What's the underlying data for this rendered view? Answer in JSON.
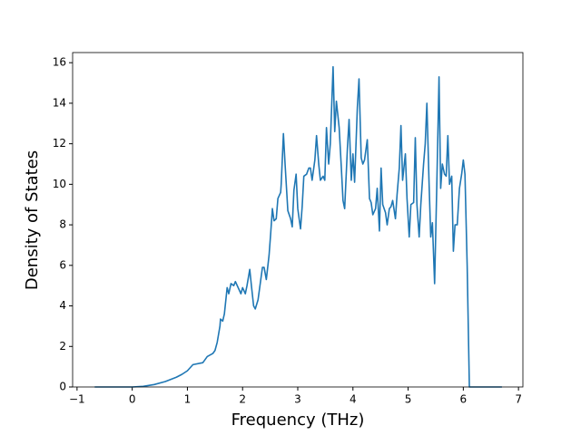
{
  "chart_data": {
    "type": "line",
    "xlabel": "Frequency (THz)",
    "ylabel": "Density of States",
    "x": [
      -0.68,
      0,
      0.2,
      0.4,
      0.6,
      0.8,
      0.9,
      1.0,
      1.1,
      1.28,
      1.36,
      1.46,
      1.5,
      1.54,
      1.59,
      1.6,
      1.64,
      1.67,
      1.72,
      1.75,
      1.79,
      1.84,
      1.87,
      1.92,
      1.97,
      2.0,
      2.05,
      2.08,
      2.13,
      2.16,
      2.2,
      2.23,
      2.28,
      2.33,
      2.36,
      2.39,
      2.43,
      2.48,
      2.51,
      2.54,
      2.57,
      2.61,
      2.64,
      2.69,
      2.7,
      2.74,
      2.77,
      2.82,
      2.87,
      2.9,
      2.93,
      2.97,
      3.0,
      3.05,
      3.08,
      3.11,
      3.16,
      3.2,
      3.23,
      3.26,
      3.31,
      3.34,
      3.38,
      3.41,
      3.46,
      3.49,
      3.52,
      3.56,
      3.59,
      3.64,
      3.67,
      3.7,
      3.75,
      3.79,
      3.82,
      3.85,
      3.9,
      3.93,
      3.97,
      4.0,
      4.03,
      4.08,
      4.11,
      4.15,
      4.18,
      4.21,
      4.26,
      4.3,
      4.33,
      4.36,
      4.41,
      4.44,
      4.48,
      4.51,
      4.54,
      4.59,
      4.62,
      4.66,
      4.69,
      4.72,
      4.77,
      4.8,
      4.84,
      4.87,
      4.9,
      4.95,
      4.98,
      5.02,
      5.05,
      5.1,
      5.13,
      5.16,
      5.2,
      5.23,
      5.28,
      5.31,
      5.34,
      5.38,
      5.41,
      5.44,
      5.48,
      5.52,
      5.56,
      5.59,
      5.62,
      5.66,
      5.69,
      5.72,
      5.75,
      5.79,
      5.82,
      5.85,
      5.89,
      5.93,
      5.97,
      6.0,
      6.03,
      6.07,
      6.11,
      6.7
    ],
    "series": [
      {
        "color": "#1f77b4",
        "values": [
          0,
          0,
          0.03,
          0.12,
          0.27,
          0.48,
          0.62,
          0.8,
          1.1,
          1.2,
          1.5,
          1.65,
          1.8,
          2.2,
          3.0,
          3.35,
          3.25,
          3.6,
          4.9,
          4.6,
          5.1,
          5.0,
          5.2,
          4.9,
          4.6,
          4.9,
          4.6,
          5.0,
          5.8,
          5.0,
          4.0,
          3.85,
          4.3,
          5.3,
          5.9,
          5.9,
          5.3,
          6.5,
          7.6,
          8.8,
          8.2,
          8.3,
          9.3,
          9.6,
          10.0,
          12.5,
          11.0,
          8.7,
          8.3,
          7.9,
          9.7,
          10.5,
          8.8,
          7.8,
          8.9,
          10.4,
          10.5,
          10.8,
          10.8,
          10.2,
          11.2,
          12.4,
          11.0,
          10.2,
          10.4,
          10.2,
          12.8,
          11.0,
          12.0,
          15.8,
          12.6,
          14.1,
          12.8,
          10.8,
          9.2,
          8.8,
          11.8,
          13.2,
          10.2,
          11.5,
          10.1,
          13.8,
          15.2,
          11.3,
          11.0,
          11.2,
          12.2,
          9.3,
          9.1,
          8.5,
          8.8,
          9.8,
          7.7,
          10.8,
          9.0,
          8.6,
          8.0,
          8.8,
          8.9,
          9.2,
          8.3,
          9.5,
          10.8,
          12.9,
          10.2,
          11.5,
          9.3,
          7.4,
          9.0,
          9.1,
          12.3,
          9.0,
          7.4,
          9.0,
          11.0,
          12.0,
          14.0,
          10.0,
          7.4,
          8.1,
          5.1,
          10.0,
          15.3,
          9.8,
          11.0,
          10.5,
          10.4,
          12.4,
          10.0,
          10.4,
          6.7,
          8.0,
          8.0,
          9.8,
          10.5,
          11.2,
          10.5,
          6.0,
          0,
          0
        ]
      }
    ],
    "xlim": [
      -1.08,
      7.08
    ],
    "ylim": [
      0,
      16.5
    ],
    "xticks": [
      {
        "value": -1,
        "label": "−1"
      },
      0,
      1,
      2,
      3,
      4,
      5,
      6,
      7
    ],
    "yticks": [
      0,
      2,
      4,
      6,
      8,
      10,
      12,
      14,
      16
    ]
  }
}
